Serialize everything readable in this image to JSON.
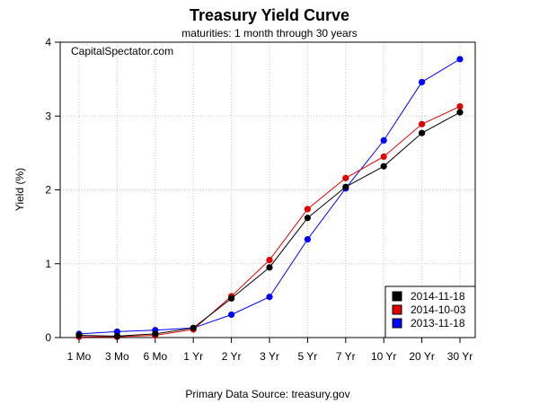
{
  "chart_data": {
    "type": "line",
    "title": "Treasury Yield Curve",
    "subtitle": "maturities: 1 month through 30 years",
    "xlabel": "Primary Data Source: treasury.gov",
    "ylabel": "Yield (%)",
    "watermark": "CapitalSpectator.com",
    "categories": [
      "1 Mo",
      "3 Mo",
      "6 Mo",
      "1 Yr",
      "2 Yr",
      "3 Yr",
      "5 Yr",
      "7 Yr",
      "10 Yr",
      "20 Yr",
      "30 Yr"
    ],
    "yticks": [
      "0",
      "1",
      "2",
      "3",
      "4"
    ],
    "ylim": [
      0,
      4
    ],
    "grid": true,
    "legend_position": "bottom-right",
    "series": [
      {
        "name": "2014-11-18",
        "color": "#000000",
        "values": [
          0.03,
          0.02,
          0.05,
          0.13,
          0.53,
          0.95,
          1.62,
          2.04,
          2.32,
          2.77,
          3.05
        ]
      },
      {
        "name": "2014-10-03",
        "color": "#e00000",
        "values": [
          0.01,
          0.01,
          0.03,
          0.11,
          0.56,
          1.05,
          1.74,
          2.16,
          2.45,
          2.89,
          3.13
        ]
      },
      {
        "name": "2013-11-18",
        "color": "#0000ff",
        "values": [
          0.05,
          0.08,
          0.1,
          0.13,
          0.31,
          0.55,
          1.33,
          2.02,
          2.67,
          3.46,
          3.77
        ]
      }
    ]
  }
}
